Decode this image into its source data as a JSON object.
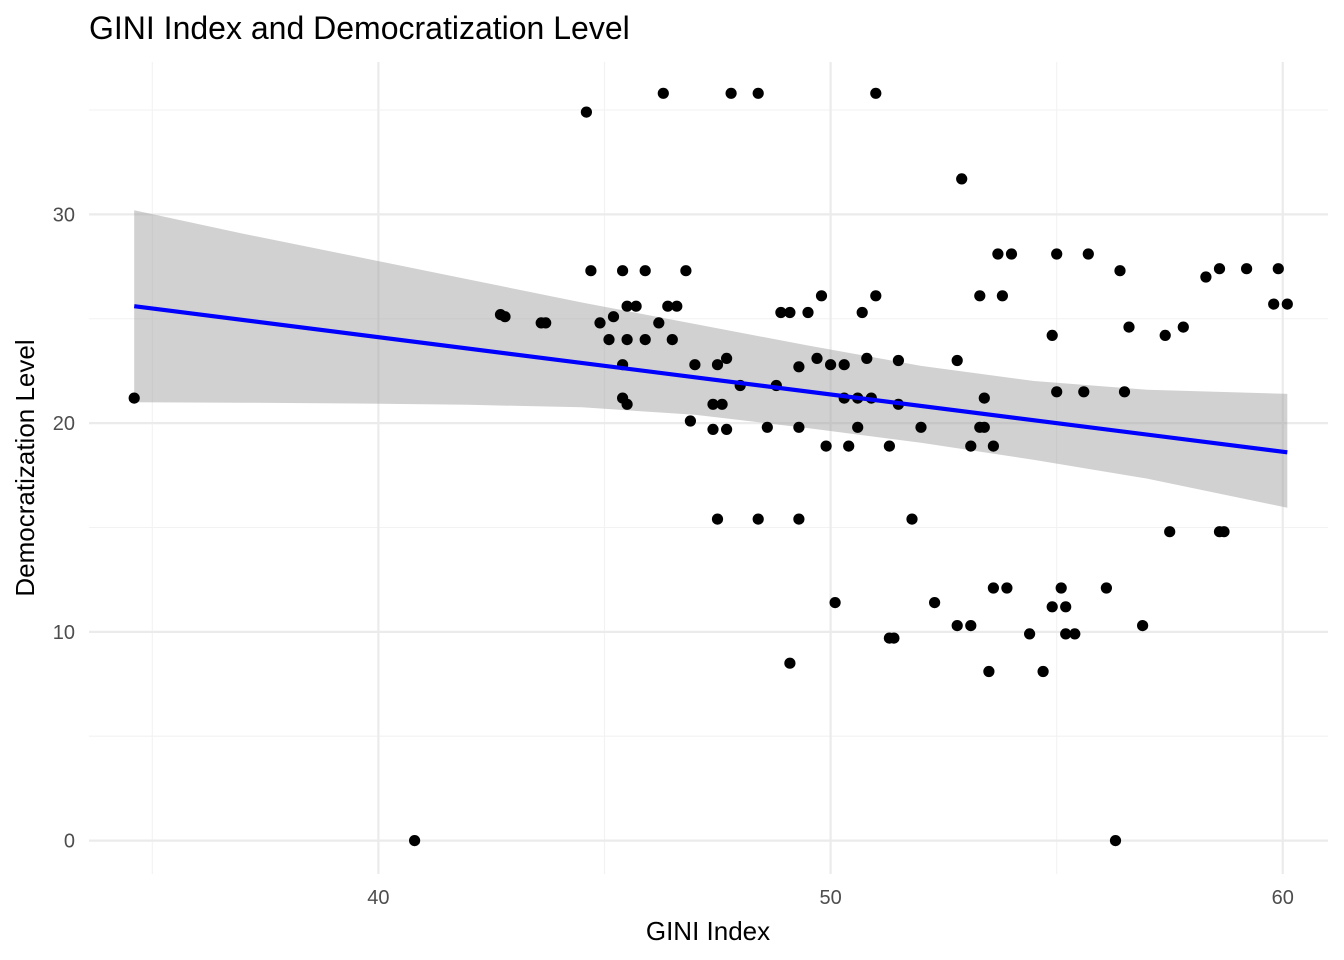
{
  "chart_data": {
    "type": "scatter",
    "title": "GINI Index and Democratization Level",
    "xlabel": "GINI Index",
    "ylabel": "Democratization Level",
    "xlim": [
      33.6,
      61.0
    ],
    "ylim": [
      -1.6,
      37.3
    ],
    "x_ticks": [
      40,
      50,
      60
    ],
    "x_tick_labels": [
      "40",
      "50",
      "60"
    ],
    "x_minor_ticks": [
      35,
      45,
      55
    ],
    "y_ticks": [
      0,
      10,
      20,
      30
    ],
    "y_tick_labels": [
      "0",
      "10",
      "20",
      "30"
    ],
    "y_minor_ticks": [
      5,
      15,
      25,
      35
    ],
    "grid": true,
    "colors": {
      "points": "#000000",
      "trend_line": "#0000ff",
      "confidence_band": "#999999"
    },
    "points": [
      [
        34.6,
        21.2
      ],
      [
        40.8,
        0.0
      ],
      [
        42.7,
        25.2
      ],
      [
        42.8,
        25.1
      ],
      [
        43.6,
        24.8
      ],
      [
        43.7,
        24.8
      ],
      [
        44.6,
        34.9
      ],
      [
        44.7,
        27.3
      ],
      [
        44.9,
        24.8
      ],
      [
        45.1,
        24.0
      ],
      [
        45.2,
        25.1
      ],
      [
        45.4,
        27.3
      ],
      [
        45.4,
        22.8
      ],
      [
        45.4,
        21.2
      ],
      [
        45.5,
        25.6
      ],
      [
        45.5,
        24.0
      ],
      [
        45.5,
        20.9
      ],
      [
        45.7,
        25.6
      ],
      [
        45.9,
        27.3
      ],
      [
        45.9,
        24.0
      ],
      [
        46.2,
        24.8
      ],
      [
        46.3,
        35.8
      ],
      [
        46.4,
        25.6
      ],
      [
        46.5,
        24.0
      ],
      [
        46.6,
        25.6
      ],
      [
        46.8,
        27.3
      ],
      [
        46.9,
        20.1
      ],
      [
        47.0,
        22.8
      ],
      [
        47.4,
        20.9
      ],
      [
        47.4,
        19.7
      ],
      [
        47.5,
        22.8
      ],
      [
        47.5,
        15.4
      ],
      [
        47.6,
        20.9
      ],
      [
        47.7,
        23.1
      ],
      [
        47.7,
        19.7
      ],
      [
        47.8,
        35.8
      ],
      [
        48.0,
        21.8
      ],
      [
        48.4,
        35.8
      ],
      [
        48.4,
        15.4
      ],
      [
        48.6,
        19.8
      ],
      [
        48.8,
        21.8
      ],
      [
        48.9,
        25.3
      ],
      [
        49.1,
        25.3
      ],
      [
        49.1,
        8.5
      ],
      [
        49.3,
        22.7
      ],
      [
        49.3,
        19.8
      ],
      [
        49.3,
        15.4
      ],
      [
        49.5,
        25.3
      ],
      [
        49.7,
        23.1
      ],
      [
        49.8,
        26.1
      ],
      [
        49.9,
        18.9
      ],
      [
        50.0,
        22.8
      ],
      [
        50.1,
        11.4
      ],
      [
        50.3,
        22.8
      ],
      [
        50.3,
        21.2
      ],
      [
        50.4,
        18.9
      ],
      [
        50.6,
        21.2
      ],
      [
        50.6,
        19.8
      ],
      [
        50.7,
        25.3
      ],
      [
        50.8,
        23.1
      ],
      [
        50.9,
        21.2
      ],
      [
        51.0,
        35.8
      ],
      [
        51.0,
        26.1
      ],
      [
        51.3,
        18.9
      ],
      [
        51.3,
        9.7
      ],
      [
        51.4,
        9.7
      ],
      [
        51.5,
        23.0
      ],
      [
        51.5,
        20.9
      ],
      [
        51.8,
        15.4
      ],
      [
        52.0,
        19.8
      ],
      [
        52.3,
        11.4
      ],
      [
        52.8,
        23.0
      ],
      [
        52.8,
        10.3
      ],
      [
        52.9,
        31.7
      ],
      [
        53.1,
        18.9
      ],
      [
        53.1,
        10.3
      ],
      [
        53.3,
        26.1
      ],
      [
        53.3,
        19.8
      ],
      [
        53.4,
        21.2
      ],
      [
        53.4,
        19.8
      ],
      [
        53.5,
        8.1
      ],
      [
        53.6,
        18.9
      ],
      [
        53.6,
        12.1
      ],
      [
        53.7,
        28.1
      ],
      [
        53.8,
        26.1
      ],
      [
        53.9,
        12.1
      ],
      [
        54.0,
        28.1
      ],
      [
        54.4,
        9.9
      ],
      [
        54.7,
        8.1
      ],
      [
        54.9,
        24.2
      ],
      [
        54.9,
        11.2
      ],
      [
        55.0,
        28.1
      ],
      [
        55.0,
        21.5
      ],
      [
        55.1,
        12.1
      ],
      [
        55.2,
        11.2
      ],
      [
        55.2,
        9.9
      ],
      [
        55.4,
        9.9
      ],
      [
        55.6,
        21.5
      ],
      [
        55.7,
        28.1
      ],
      [
        56.1,
        12.1
      ],
      [
        56.3,
        0.0
      ],
      [
        56.4,
        27.3
      ],
      [
        56.5,
        21.5
      ],
      [
        56.6,
        24.6
      ],
      [
        56.9,
        10.3
      ],
      [
        57.4,
        24.2
      ],
      [
        57.5,
        14.8
      ],
      [
        57.8,
        24.6
      ],
      [
        58.3,
        27.0
      ],
      [
        58.6,
        27.4
      ],
      [
        58.6,
        14.8
      ],
      [
        58.7,
        14.8
      ],
      [
        59.2,
        27.4
      ],
      [
        59.8,
        25.7
      ],
      [
        59.9,
        27.4
      ],
      [
        60.1,
        25.7
      ]
    ],
    "trend_line": {
      "x": [
        34.6,
        60.1
      ],
      "y": [
        25.6,
        18.6
      ]
    },
    "confidence_band": {
      "x": [
        34.6,
        37.0,
        39.5,
        42.0,
        44.5,
        47.0,
        49.5,
        52.0,
        54.5,
        57.0,
        60.1
      ],
      "lower": [
        21.0,
        20.98,
        20.94,
        20.88,
        20.76,
        20.4,
        19.76,
        19.06,
        18.24,
        17.34,
        15.95
      ],
      "upper": [
        30.2,
        29.08,
        27.98,
        26.88,
        25.78,
        24.75,
        23.72,
        22.74,
        22.02,
        21.6,
        21.4
      ]
    }
  }
}
